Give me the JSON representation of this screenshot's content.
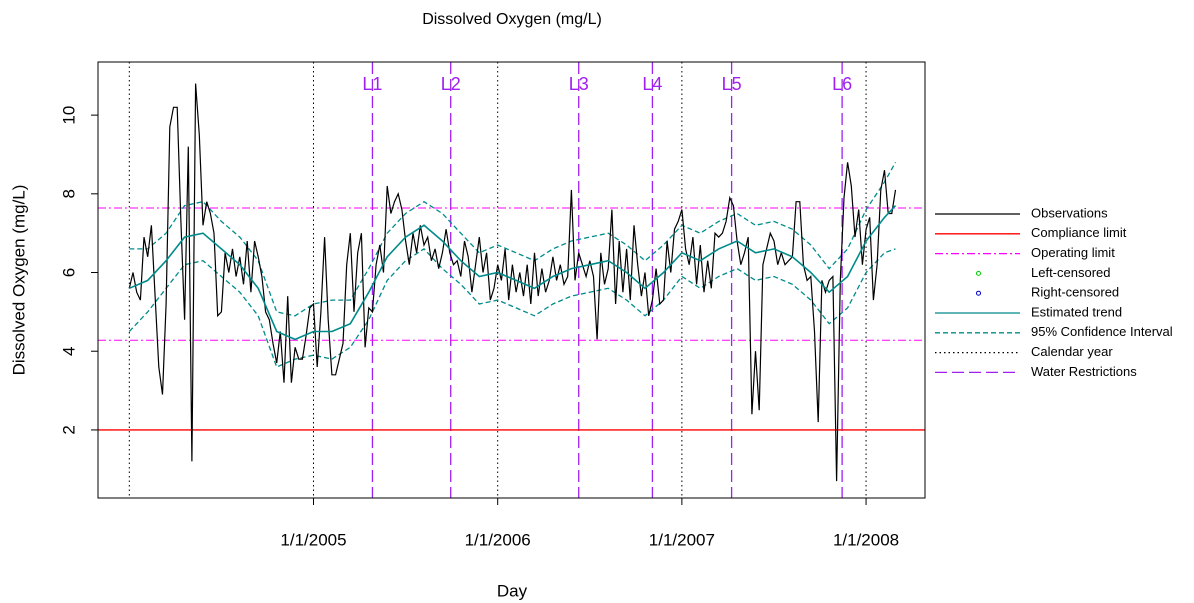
{
  "chart_data": {
    "type": "line",
    "title": "Dissolved Oxygen (mg/L)",
    "x_label": "Day",
    "y_label": "Dissolved Oxygen (mg/L)",
    "xlim": [
      2003.83,
      2008.32
    ],
    "ylim": [
      0.27,
      11.35
    ],
    "xticks": [
      {
        "value": 2005,
        "label": "1/1/2005"
      },
      {
        "value": 2006,
        "label": "1/1/2006"
      },
      {
        "value": 2007,
        "label": "1/1/2007"
      },
      {
        "value": 2008,
        "label": "1/1/2008"
      }
    ],
    "yticks": [
      2,
      4,
      6,
      8,
      10
    ],
    "series": [
      {
        "name": "Observations",
        "color": "#000000",
        "x": [
          2004,
          2004.02,
          2004.04,
          2004.06,
          2004.08,
          2004.1,
          2004.12,
          2004.14,
          2004.16,
          2004.18,
          2004.2,
          2004.22,
          2004.24,
          2004.26,
          2004.28,
          2004.3,
          2004.32,
          2004.34,
          2004.36,
          2004.38,
          2004.4,
          2004.42,
          2004.44,
          2004.46,
          2004.48,
          2004.5,
          2004.52,
          2004.54,
          2004.56,
          2004.58,
          2004.6,
          2004.62,
          2004.64,
          2004.66,
          2004.68,
          2004.7,
          2004.72,
          2004.74,
          2004.76,
          2004.78,
          2004.8,
          2004.82,
          2004.84,
          2004.86,
          2004.88,
          2004.9,
          2004.92,
          2004.94,
          2004.96,
          2004.98,
          2005,
          2005.02,
          2005.04,
          2005.06,
          2005.08,
          2005.1,
          2005.12,
          2005.14,
          2005.16,
          2005.18,
          2005.2,
          2005.22,
          2005.24,
          2005.26,
          2005.28,
          2005.3,
          2005.32,
          2005.34,
          2005.36,
          2005.38,
          2005.4,
          2005.42,
          2005.44,
          2005.46,
          2005.48,
          2005.5,
          2005.52,
          2005.54,
          2005.56,
          2005.58,
          2005.6,
          2005.62,
          2005.64,
          2005.66,
          2005.68,
          2005.7,
          2005.72,
          2005.74,
          2005.76,
          2005.78,
          2005.8,
          2005.82,
          2005.84,
          2005.86,
          2005.88,
          2005.9,
          2005.92,
          2005.94,
          2005.96,
          2005.98,
          2006,
          2006.02,
          2006.04,
          2006.06,
          2006.08,
          2006.1,
          2006.12,
          2006.14,
          2006.16,
          2006.18,
          2006.2,
          2006.22,
          2006.24,
          2006.26,
          2006.28,
          2006.3,
          2006.32,
          2006.34,
          2006.36,
          2006.38,
          2006.4,
          2006.42,
          2006.44,
          2006.46,
          2006.48,
          2006.5,
          2006.52,
          2006.54,
          2006.56,
          2006.58,
          2006.6,
          2006.62,
          2006.64,
          2006.66,
          2006.68,
          2006.7,
          2006.72,
          2006.74,
          2006.76,
          2006.78,
          2006.8,
          2006.82,
          2006.84,
          2006.86,
          2006.88,
          2006.9,
          2006.92,
          2006.94,
          2006.96,
          2006.98,
          2007,
          2007.02,
          2007.04,
          2007.06,
          2007.08,
          2007.1,
          2007.12,
          2007.14,
          2007.16,
          2007.18,
          2007.2,
          2007.22,
          2007.24,
          2007.26,
          2007.28,
          2007.3,
          2007.32,
          2007.34,
          2007.36,
          2007.38,
          2007.4,
          2007.42,
          2007.44,
          2007.46,
          2007.48,
          2007.5,
          2007.52,
          2007.54,
          2007.56,
          2007.58,
          2007.6,
          2007.62,
          2007.64,
          2007.66,
          2007.68,
          2007.7,
          2007.72,
          2007.74,
          2007.76,
          2007.78,
          2007.8,
          2007.82,
          2007.84,
          2007.86,
          2007.88,
          2007.9,
          2007.92,
          2007.94,
          2007.96,
          2007.98,
          2008,
          2008.02,
          2008.04,
          2008.06,
          2008.08,
          2008.1,
          2008.12,
          2008.14,
          2008.16
        ],
        "values": [
          5.6,
          6.0,
          5.5,
          5.3,
          6.9,
          6.4,
          7.2,
          5.4,
          3.6,
          2.9,
          5.2,
          9.7,
          10.2,
          10.2,
          7.3,
          4.8,
          9.2,
          1.2,
          10.8,
          9.5,
          7.2,
          7.8,
          7.5,
          7.0,
          4.9,
          5.0,
          6.5,
          6.0,
          6.6,
          5.9,
          6.4,
          5.7,
          6.8,
          5.5,
          6.8,
          6.4,
          5.9,
          5.0,
          4.8,
          4.2,
          3.7,
          4.5,
          3.2,
          5.4,
          3.2,
          4.1,
          3.8,
          3.8,
          4.4,
          5.1,
          5.2,
          3.6,
          5.0,
          6.9,
          4.8,
          3.4,
          3.4,
          3.8,
          4.2,
          6.2,
          7.0,
          5.0,
          6.5,
          7.0,
          4.1,
          5.1,
          5.0,
          6.2,
          6.7,
          6.0,
          8.2,
          7.5,
          7.8,
          8.0,
          7.6,
          6.8,
          6.2,
          7.0,
          6.5,
          7.2,
          6.7,
          6.9,
          6.3,
          6.6,
          6.1,
          6.5,
          7.1,
          6.5,
          6.2,
          6.3,
          5.9,
          6.8,
          6.4,
          5.5,
          6.2,
          6.9,
          6.0,
          6.5,
          5.3,
          5.6,
          6.2,
          5.8,
          6.6,
          5.3,
          6.2,
          5.5,
          6.0,
          5.4,
          6.2,
          5.2,
          6.5,
          5.4,
          6.1,
          5.5,
          5.8,
          6.4,
          5.8,
          6.2,
          5.7,
          5.9,
          8.1,
          5.8,
          6.5,
          6.2,
          5.9,
          6.3,
          5.9,
          4.3,
          6.5,
          5.7,
          6.1,
          7.6,
          5.2,
          6.8,
          5.5,
          6.6,
          5.3,
          7.2,
          6.2,
          5.4,
          6.0,
          4.9,
          5.3,
          6.1,
          5.2,
          5.3,
          6.8,
          6.0,
          7.1,
          7.3,
          7.6,
          6.6,
          6.2,
          6.9,
          5.7,
          6.7,
          5.5,
          6.3,
          5.6,
          7.0,
          6.9,
          7.0,
          7.3,
          7.9,
          7.7,
          6.8,
          6.2,
          6.5,
          6.9,
          2.4,
          4.0,
          2.5,
          6.2,
          6.6,
          7.0,
          6.8,
          6.2,
          6.5,
          6.2,
          6.3,
          6.4,
          7.8,
          7.8,
          6.2,
          5.8,
          5.9,
          4.5,
          2.2,
          5.8,
          5.5,
          5.8,
          5.9,
          0.7,
          5.8,
          7.9,
          8.8,
          8.2,
          6.9,
          7.6,
          6.2,
          7.1,
          7.4,
          5.3,
          6.2,
          8.1,
          8.6,
          7.5,
          7.5,
          8.1
        ]
      },
      {
        "name": "Estimated trend",
        "color": "#008b8b",
        "x": [
          2004,
          2004.1,
          2004.2,
          2004.3,
          2004.4,
          2004.5,
          2004.6,
          2004.7,
          2004.8,
          2004.9,
          2005,
          2005.1,
          2005.2,
          2005.3,
          2005.4,
          2005.5,
          2005.6,
          2005.7,
          2005.8,
          2005.9,
          2006,
          2006.1,
          2006.2,
          2006.3,
          2006.4,
          2006.5,
          2006.6,
          2006.7,
          2006.8,
          2006.9,
          2007,
          2007.1,
          2007.2,
          2007.3,
          2007.4,
          2007.5,
          2007.6,
          2007.7,
          2007.8,
          2007.9,
          2008,
          2008.1,
          2008.16
        ],
        "values": [
          5.6,
          5.8,
          6.3,
          6.9,
          7.0,
          6.6,
          6.2,
          5.6,
          4.5,
          4.3,
          4.5,
          4.5,
          4.7,
          5.5,
          6.4,
          6.9,
          7.2,
          6.8,
          6.3,
          5.9,
          6.0,
          5.8,
          5.6,
          5.9,
          6.1,
          6.2,
          6.3,
          6.0,
          5.6,
          6.0,
          6.5,
          6.3,
          6.6,
          6.8,
          6.5,
          6.6,
          6.4,
          6.0,
          5.5,
          5.9,
          6.8,
          7.4,
          7.7
        ]
      },
      {
        "name": "95% Confidence Interval",
        "color": "#008b8b",
        "x": [
          2004,
          2004.1,
          2004.2,
          2004.3,
          2004.4,
          2004.5,
          2004.6,
          2004.7,
          2004.8,
          2004.9,
          2005,
          2005.1,
          2005.2,
          2005.3,
          2005.4,
          2005.5,
          2005.6,
          2005.7,
          2005.8,
          2005.9,
          2006,
          2006.1,
          2006.2,
          2006.3,
          2006.4,
          2006.5,
          2006.6,
          2006.7,
          2006.8,
          2006.9,
          2007,
          2007.1,
          2007.2,
          2007.3,
          2007.4,
          2007.5,
          2007.6,
          2007.7,
          2007.8,
          2007.9,
          2008,
          2008.1,
          2008.16
        ],
        "upper": [
          6.6,
          6.6,
          7.0,
          7.7,
          7.8,
          7.3,
          6.9,
          6.3,
          5.0,
          4.9,
          5.2,
          5.3,
          5.3,
          6.1,
          7.0,
          7.5,
          7.8,
          7.5,
          7.0,
          6.5,
          6.7,
          6.5,
          6.3,
          6.6,
          6.8,
          6.9,
          7.0,
          6.7,
          6.3,
          6.7,
          7.2,
          7.0,
          7.3,
          7.5,
          7.2,
          7.3,
          7.1,
          6.7,
          6.1,
          6.6,
          7.6,
          8.3,
          8.8
        ],
        "lower": [
          4.5,
          5.0,
          5.6,
          6.2,
          6.3,
          5.9,
          5.5,
          4.9,
          3.6,
          3.8,
          3.9,
          3.8,
          4.1,
          4.8,
          5.8,
          6.3,
          6.6,
          6.1,
          5.7,
          5.2,
          5.3,
          5.1,
          4.9,
          5.2,
          5.4,
          5.5,
          5.6,
          5.3,
          4.9,
          5.3,
          5.9,
          5.6,
          5.9,
          6.1,
          5.8,
          5.9,
          5.7,
          5.3,
          4.7,
          5.1,
          6.0,
          6.5,
          6.6
        ]
      }
    ],
    "left_censored": {
      "name": "Left-censored",
      "color": "#00cc00"
    },
    "right_censored": {
      "name": "Right-censored",
      "color": "#0000cc"
    },
    "compliance_limit": {
      "name": "Compliance limit",
      "color": "#ff0000",
      "value": 2
    },
    "operating_limit": {
      "name": "Operating limit",
      "color": "#ff00ff",
      "values": [
        4.28,
        7.64
      ]
    },
    "calendar_year": {
      "name": "Calendar year",
      "color": "#000000",
      "x": [
        2004,
        2005,
        2006,
        2007,
        2008
      ]
    },
    "water_restrictions": {
      "name": "Water Restrictions",
      "color": "#a020f0",
      "x": [
        2005.32,
        2005.745,
        2006.44,
        2006.84,
        2007.27,
        2007.87
      ],
      "labels": [
        "L1",
        "L2",
        "L3",
        "L4",
        "L5",
        "L6"
      ]
    }
  }
}
